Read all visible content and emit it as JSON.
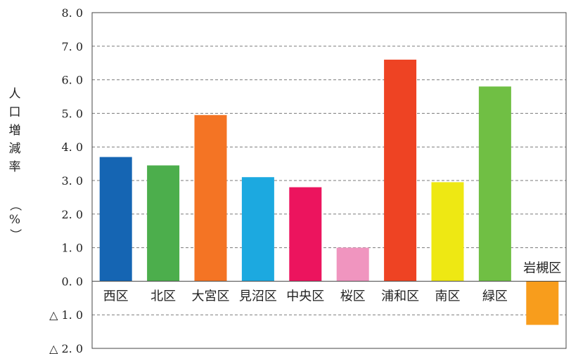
{
  "chart_data": {
    "type": "bar",
    "ylabel": [
      "人",
      "口",
      "増",
      "減",
      "率",
      "（",
      "%",
      "）"
    ],
    "ylim": [
      -2.0,
      8.0
    ],
    "yticks": [
      {
        "value": 8.0,
        "label": "8. 0"
      },
      {
        "value": 7.0,
        "label": "7. 0"
      },
      {
        "value": 6.0,
        "label": "6. 0"
      },
      {
        "value": 5.0,
        "label": "5. 0"
      },
      {
        "value": 4.0,
        "label": "4. 0"
      },
      {
        "value": 3.0,
        "label": "3. 0"
      },
      {
        "value": 2.0,
        "label": "2. 0"
      },
      {
        "value": 1.0,
        "label": "1. 0"
      },
      {
        "value": 0.0,
        "label": "0. 0"
      },
      {
        "value": -1.0,
        "label": "△ 1. 0"
      },
      {
        "value": -2.0,
        "label": "△ 2. 0"
      }
    ],
    "grid": true,
    "categories": [
      "西区",
      "北区",
      "大宮区",
      "見沼区",
      "中央区",
      "桜区",
      "浦和区",
      "南区",
      "緑区",
      "岩槻区"
    ],
    "values": [
      3.7,
      3.45,
      4.95,
      3.1,
      2.8,
      1.0,
      6.6,
      2.95,
      5.8,
      -1.3
    ],
    "colors": [
      "#1565b3",
      "#4cae4c",
      "#f47424",
      "#1ca9e0",
      "#ec145e",
      "#f095bf",
      "#ee4323",
      "#eee813",
      "#70bf44",
      "#f89d1c"
    ]
  }
}
